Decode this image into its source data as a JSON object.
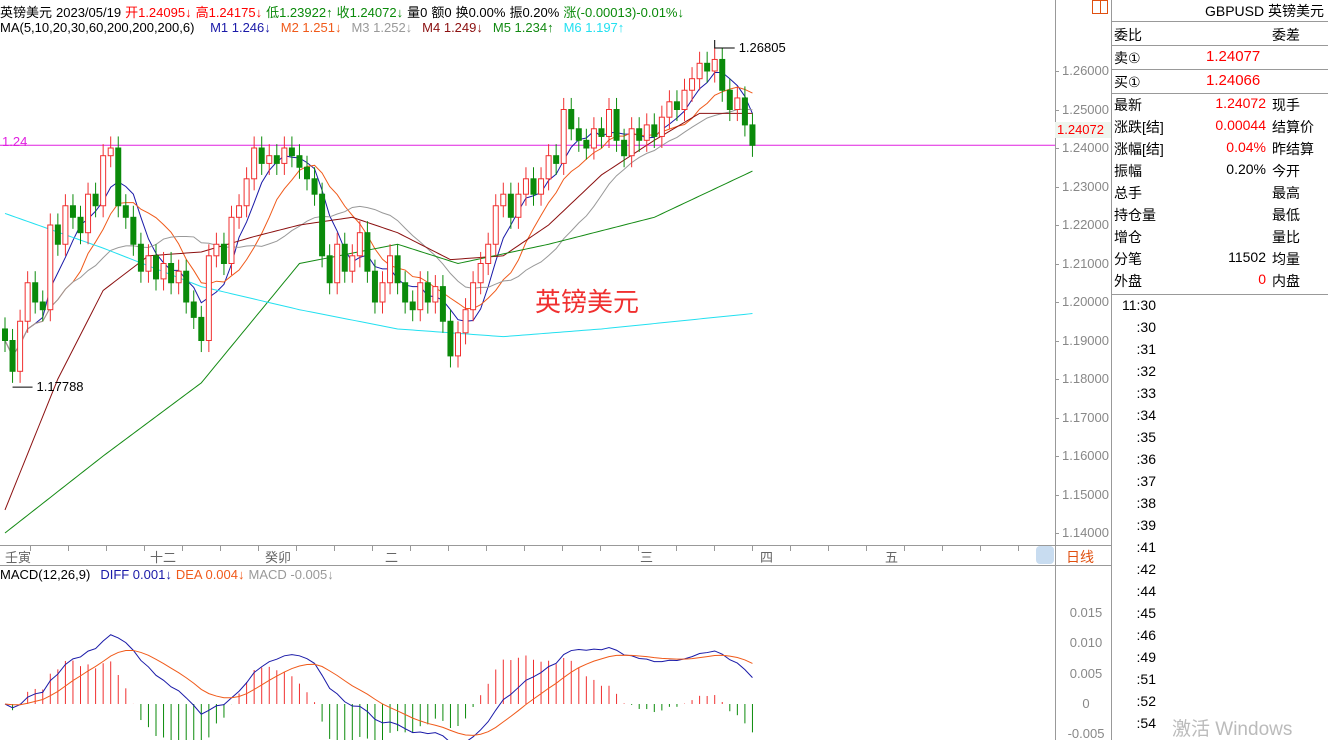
{
  "header": {
    "name": "英镑美元",
    "date": "2023/05/19",
    "open": "开1.24095↓",
    "high": "高1.24175↓",
    "low": "低1.23922↑",
    "close": "收1.24072↓",
    "volume": "量0",
    "amount": "额0",
    "turnover": "换0.00%",
    "amplitude": "振0.20%",
    "change": "涨(-0.00013)-0.01%↓"
  },
  "ma_header": {
    "label": "MA(5,10,20,30,60,200,200,200,6)",
    "items": [
      {
        "text": "M1 1.246↓",
        "color": "#1a1aa8"
      },
      {
        "text": "M2 1.251↓",
        "color": "#f05a1a"
      },
      {
        "text": "M3 1.252↓",
        "color": "#999999"
      },
      {
        "text": "M4 1.249↓",
        "color": "#8b1010"
      },
      {
        "text": "M5 1.234↑",
        "color": "#138a13"
      },
      {
        "text": "M6 1.197↑",
        "color": "#22e0f0"
      }
    ]
  },
  "colors": {
    "up": "#f03030",
    "down": "#0a8a0a",
    "price_line": "#e020e0",
    "axis": "#888888"
  },
  "price_axis": [
    "1.26000",
    "1.25000",
    "1.24000",
    "1.23000",
    "1.22000",
    "1.21000",
    "1.20000",
    "1.19000",
    "1.18000",
    "1.17000",
    "1.16000",
    "1.15000",
    "1.14000"
  ],
  "current_price_tag": "1.24072",
  "price_line_label": "1.24",
  "annotations": {
    "high": "1.26805",
    "low": "1.17788"
  },
  "watermark": "英镑美元",
  "time_axis": [
    "壬寅",
    "十二",
    "癸卯",
    "二",
    "三",
    "四",
    "五"
  ],
  "period_button": "日线",
  "macd_header": {
    "label": "MACD(12,26,9)",
    "diff": "DIFF 0.001↓",
    "dea": "DEA 0.004↓",
    "macd": "MACD -0.005↓"
  },
  "macd_axis": [
    "0.015",
    "0.010",
    "0.005",
    "0",
    "-0.005"
  ],
  "chart_data": {
    "type": "candlestick",
    "ylim": [
      1.135,
      1.27
    ],
    "close": [
      1.19,
      1.182,
      1.195,
      1.205,
      1.2,
      1.198,
      1.22,
      1.215,
      1.225,
      1.222,
      1.218,
      1.228,
      1.225,
      1.238,
      1.24,
      1.225,
      1.222,
      1.215,
      1.208,
      1.212,
      1.206,
      1.21,
      1.205,
      1.208,
      1.2,
      1.196,
      1.19,
      1.212,
      1.215,
      1.21,
      1.222,
      1.225,
      1.232,
      1.24,
      1.236,
      1.238,
      1.236,
      1.24,
      1.238,
      1.235,
      1.232,
      1.228,
      1.212,
      1.205,
      1.215,
      1.208,
      1.212,
      1.218,
      1.208,
      1.2,
      1.205,
      1.212,
      1.205,
      1.2,
      1.198,
      1.205,
      1.2,
      1.204,
      1.195,
      1.186,
      1.192,
      1.198,
      1.205,
      1.21,
      1.215,
      1.225,
      1.228,
      1.222,
      1.228,
      1.232,
      1.228,
      1.232,
      1.238,
      1.236,
      1.25,
      1.245,
      1.242,
      1.24,
      1.245,
      1.243,
      1.25,
      1.242,
      1.238,
      1.245,
      1.242,
      1.246,
      1.243,
      1.248,
      1.252,
      1.25,
      1.255,
      1.258,
      1.262,
      1.26,
      1.263,
      1.255,
      1.25,
      1.253,
      1.246,
      1.2407
    ],
    "ma_samples": {
      "M4": [
        [
          0,
          1.146
        ],
        [
          7,
          1.18
        ],
        [
          13,
          1.203
        ],
        [
          19,
          1.212
        ],
        [
          26,
          1.213
        ],
        [
          33,
          1.217
        ],
        [
          39,
          1.22
        ],
        [
          46,
          1.222
        ],
        [
          52,
          1.218
        ],
        [
          59,
          1.211
        ],
        [
          66,
          1.212
        ],
        [
          72,
          1.22
        ],
        [
          79,
          1.233
        ],
        [
          86,
          1.242
        ],
        [
          92,
          1.249
        ],
        [
          99,
          1.249
        ]
      ],
      "M5": [
        [
          0,
          1.14
        ],
        [
          13,
          1.16
        ],
        [
          26,
          1.179
        ],
        [
          39,
          1.21
        ],
        [
          52,
          1.215
        ],
        [
          60,
          1.21
        ],
        [
          72,
          1.215
        ],
        [
          86,
          1.222
        ],
        [
          99,
          1.234
        ]
      ],
      "M6": [
        [
          0,
          1.223
        ],
        [
          13,
          1.214
        ],
        [
          26,
          1.204
        ],
        [
          39,
          1.198
        ],
        [
          52,
          1.193
        ],
        [
          66,
          1.191
        ],
        [
          79,
          1.193
        ],
        [
          99,
          1.197
        ]
      ]
    }
  },
  "quote_panel": {
    "title": "GBPUSD 英镑美元",
    "weibi": "委比",
    "weicha": "委差",
    "sell_label": "卖①",
    "sell": "1.24077",
    "buy_label": "买①",
    "buy": "1.24066",
    "rows": [
      {
        "l": "最新",
        "v": "1.24072",
        "r": "现手",
        "red": true
      },
      {
        "l": "涨跌[结]",
        "v": "0.00044",
        "r": "结算价",
        "red": true
      },
      {
        "l": "涨幅[结]",
        "v": "0.04%",
        "r": "昨结算",
        "red": true
      },
      {
        "l": "振幅",
        "v": "0.20%",
        "r": "今开",
        "red": false
      },
      {
        "l": "总手",
        "v": "",
        "r": "最高",
        "red": false
      },
      {
        "l": "持仓量",
        "v": "",
        "r": "最低",
        "red": false
      },
      {
        "l": "增仓",
        "v": "",
        "r": "量比",
        "red": false
      },
      {
        "l": "分笔",
        "v": "11502",
        "r": "均量",
        "red": false
      },
      {
        "l": "外盘",
        "v": "0",
        "r": "内盘",
        "red": true
      }
    ],
    "times": [
      "11:30",
      ":30",
      ":31",
      ":32",
      ":33",
      ":34",
      ":35",
      ":36",
      ":37",
      ":38",
      ":39",
      ":41",
      ":42",
      ":44",
      ":45",
      ":46",
      ":49",
      ":51",
      ":52",
      ":54"
    ]
  },
  "os_watermark": "激活 Windows"
}
